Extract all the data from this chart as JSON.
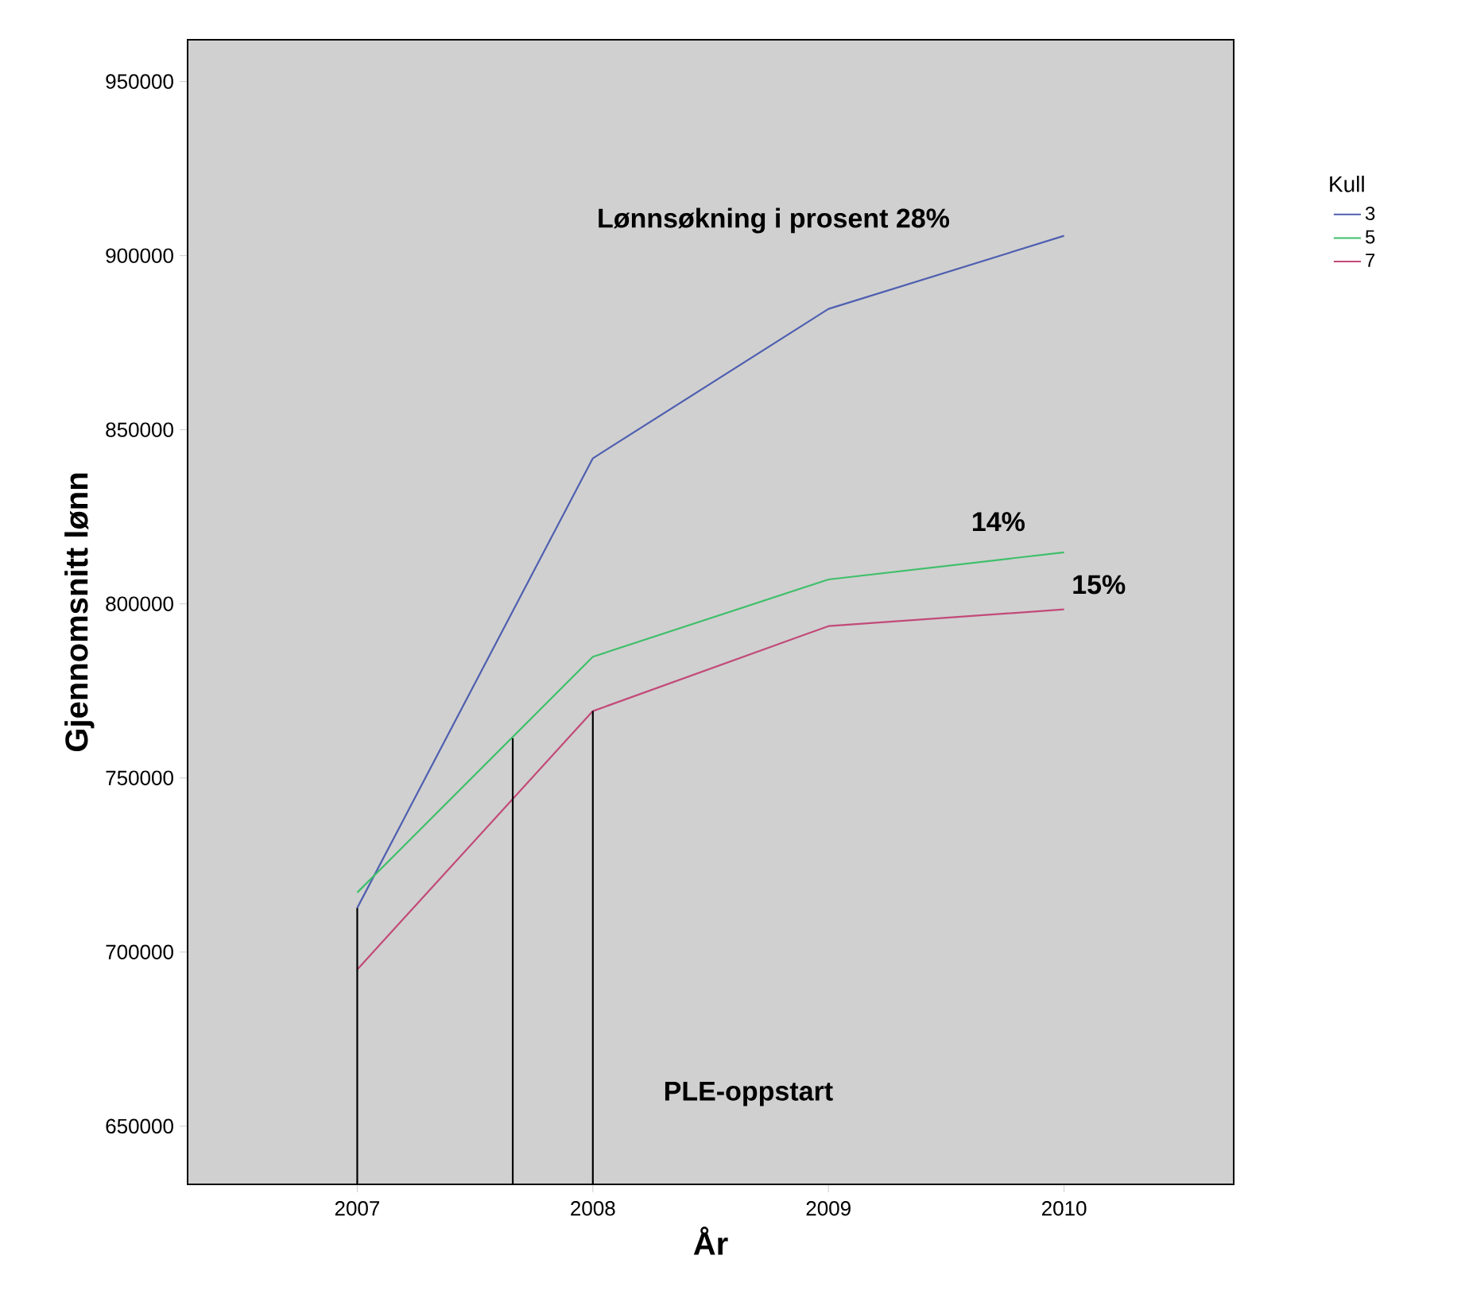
{
  "chart_data": {
    "type": "line",
    "xlabel": "År",
    "ylabel": "Gjennomsnitt lønn",
    "legend_title": "Kull",
    "legend": "top right",
    "marker": "none",
    "line_style": "solid",
    "x": [
      2007,
      2008,
      2009,
      2010
    ],
    "xlim": [
      2006.28,
      2010.72
    ],
    "xticks": [
      2007,
      2008,
      2009,
      2010
    ],
    "ylim": [
      633300,
      962000
    ],
    "yticks": [
      650000,
      700000,
      750000,
      800000,
      850000,
      900000,
      950000
    ],
    "series": [
      {
        "name": "3",
        "color": "#4f5fb0",
        "values": [
          712700,
          841800,
          884700,
          905700
        ]
      },
      {
        "name": "5",
        "color": "#3fbf6a",
        "values": [
          717100,
          784800,
          807000,
          814800
        ]
      },
      {
        "name": "7",
        "color": "#c24a78",
        "values": [
          695000,
          769200,
          793600,
          798400
        ]
      },
      {
        "color": "#000000",
        "x": [
          2007,
          2007
        ],
        "values": [
          633300,
          712700
        ]
      },
      {
        "color": "#000000",
        "x": [
          2007.66,
          2007.66
        ],
        "values": [
          633300,
          761400
        ]
      },
      {
        "color": "#000000",
        "x": [
          2008,
          2008
        ],
        "values": [
          633300,
          769200
        ]
      }
    ],
    "annotations": [
      "Lønnsøkning i prosent  28%",
      "14%",
      "15%",
      "PLE-oppstart"
    ]
  }
}
